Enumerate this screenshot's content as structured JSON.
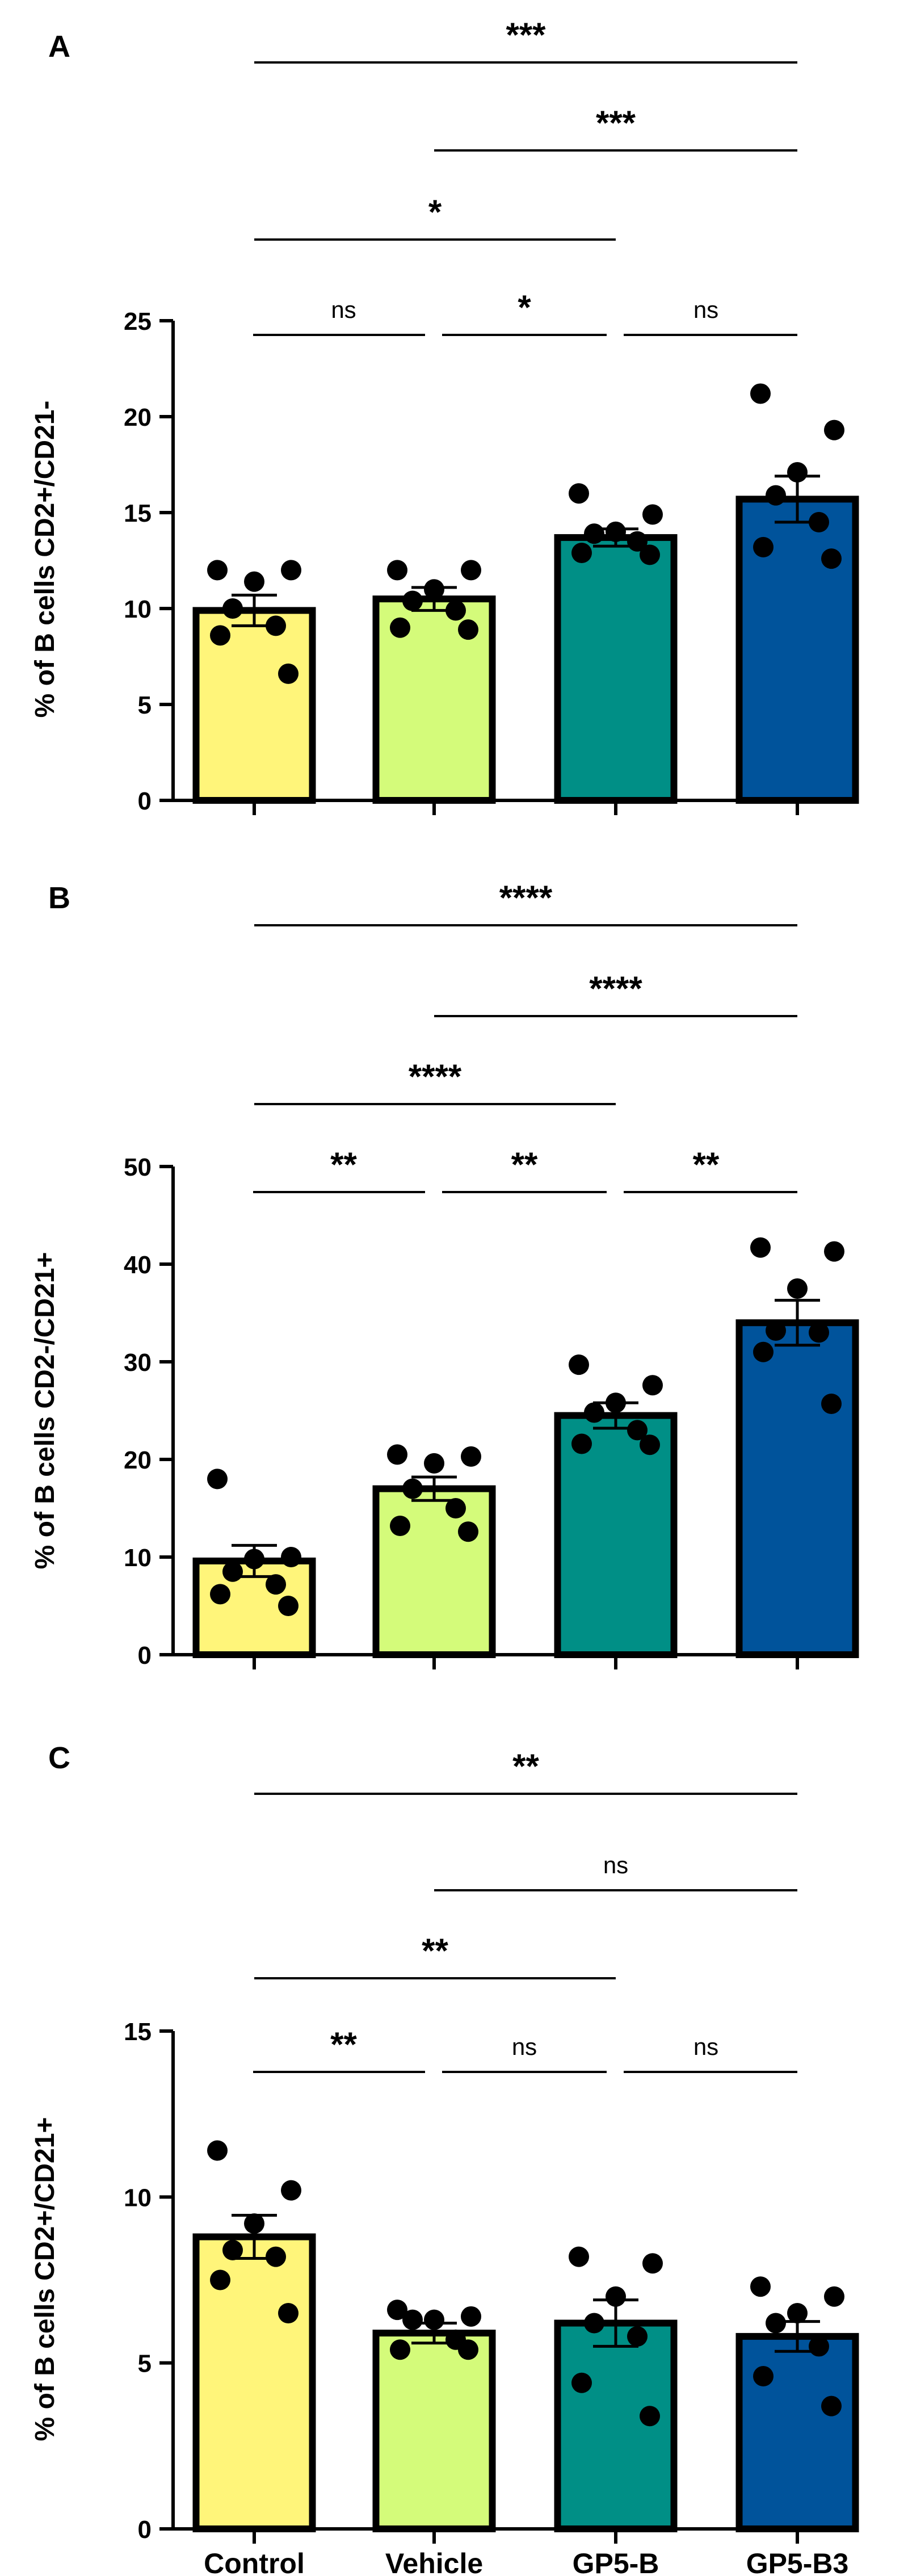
{
  "categories": [
    "Control",
    "Vehicle",
    "GP5-B",
    "GP5-B3"
  ],
  "colors": {
    "bars": [
      "#fff57a",
      "#d4fb7a",
      "#008f86",
      "#00539b"
    ],
    "outline": "#000000",
    "points": "#000000",
    "significance_line": "#000000"
  },
  "chart_data": [
    {
      "type": "bar",
      "panel_label": "A",
      "ylabel": "% of B cells CD2+/CD21-",
      "xlabel": "",
      "ylim": [
        0,
        25
      ],
      "yticks": [
        0,
        5,
        10,
        15,
        20,
        25
      ],
      "categories": [
        "Control",
        "Vehicle",
        "GP5-B",
        "GP5-B3"
      ],
      "values": [
        9.9,
        10.5,
        13.7,
        15.7
      ],
      "sem": [
        0.8,
        0.6,
        0.45,
        1.2
      ],
      "points": [
        [
          12.0,
          12.0,
          11.4,
          10.0,
          9.1,
          8.6,
          6.6
        ],
        [
          12.0,
          12.0,
          11.0,
          10.4,
          9.9,
          9.0,
          8.9
        ],
        [
          16.0,
          14.9,
          14.0,
          13.9,
          13.5,
          12.9,
          12.8
        ],
        [
          21.2,
          19.3,
          17.1,
          15.9,
          14.5,
          13.2,
          12.6
        ]
      ],
      "comparisons": [
        {
          "from": 0,
          "to": 3,
          "label": "***"
        },
        {
          "from": 1,
          "to": 3,
          "label": "***"
        },
        {
          "from": 0,
          "to": 2,
          "label": "*"
        },
        {
          "from": 0,
          "to": 1,
          "label": "ns"
        },
        {
          "from": 1,
          "to": 2,
          "label": "*"
        },
        {
          "from": 2,
          "to": 3,
          "label": "ns"
        }
      ]
    },
    {
      "type": "bar",
      "panel_label": "B",
      "ylabel": "% of B cells CD2-/CD21+",
      "xlabel": "",
      "ylim": [
        0,
        50
      ],
      "yticks": [
        0,
        10,
        20,
        30,
        40,
        50
      ],
      "categories": [
        "Control",
        "Vehicle",
        "GP5-B",
        "GP5-B3"
      ],
      "values": [
        9.6,
        17.0,
        24.5,
        34.0
      ],
      "sem": [
        1.6,
        1.2,
        1.3,
        2.3
      ],
      "points": [
        [
          18.0,
          10.0,
          9.8,
          8.5,
          7.2,
          6.2,
          5.0
        ],
        [
          20.5,
          20.3,
          19.6,
          17.0,
          15.0,
          13.2,
          12.6
        ],
        [
          29.7,
          27.6,
          25.8,
          24.8,
          23.0,
          21.6,
          21.5
        ],
        [
          41.7,
          41.3,
          37.5,
          33.2,
          33.0,
          31.0,
          25.7
        ]
      ],
      "comparisons": [
        {
          "from": 0,
          "to": 3,
          "label": "****"
        },
        {
          "from": 1,
          "to": 3,
          "label": "****"
        },
        {
          "from": 0,
          "to": 2,
          "label": "****"
        },
        {
          "from": 0,
          "to": 1,
          "label": "**"
        },
        {
          "from": 1,
          "to": 2,
          "label": "**"
        },
        {
          "from": 2,
          "to": 3,
          "label": "**"
        }
      ]
    },
    {
      "type": "bar",
      "panel_label": "C",
      "ylabel": "% of B cells CD2+/CD21+",
      "xlabel": "",
      "ylim": [
        0,
        15
      ],
      "yticks": [
        0,
        5,
        10,
        15
      ],
      "categories": [
        "Control",
        "Vehicle",
        "GP5-B",
        "GP5-B3"
      ],
      "values": [
        8.8,
        5.9,
        6.2,
        5.8
      ],
      "sem": [
        0.65,
        0.3,
        0.7,
        0.45
      ],
      "points": [
        [
          11.4,
          10.2,
          9.2,
          8.4,
          8.2,
          7.5,
          6.5
        ],
        [
          6.6,
          6.4,
          6.3,
          6.3,
          5.7,
          5.4,
          5.4
        ],
        [
          8.2,
          8.0,
          7.0,
          6.2,
          5.8,
          4.4,
          3.4
        ],
        [
          7.3,
          7.0,
          6.5,
          6.2,
          5.5,
          4.6,
          3.7
        ]
      ],
      "comparisons": [
        {
          "from": 0,
          "to": 3,
          "label": "**"
        },
        {
          "from": 1,
          "to": 3,
          "label": "ns"
        },
        {
          "from": 0,
          "to": 2,
          "label": "**"
        },
        {
          "from": 0,
          "to": 1,
          "label": "**"
        },
        {
          "from": 1,
          "to": 2,
          "label": "ns"
        },
        {
          "from": 2,
          "to": 3,
          "label": "ns"
        }
      ]
    }
  ]
}
